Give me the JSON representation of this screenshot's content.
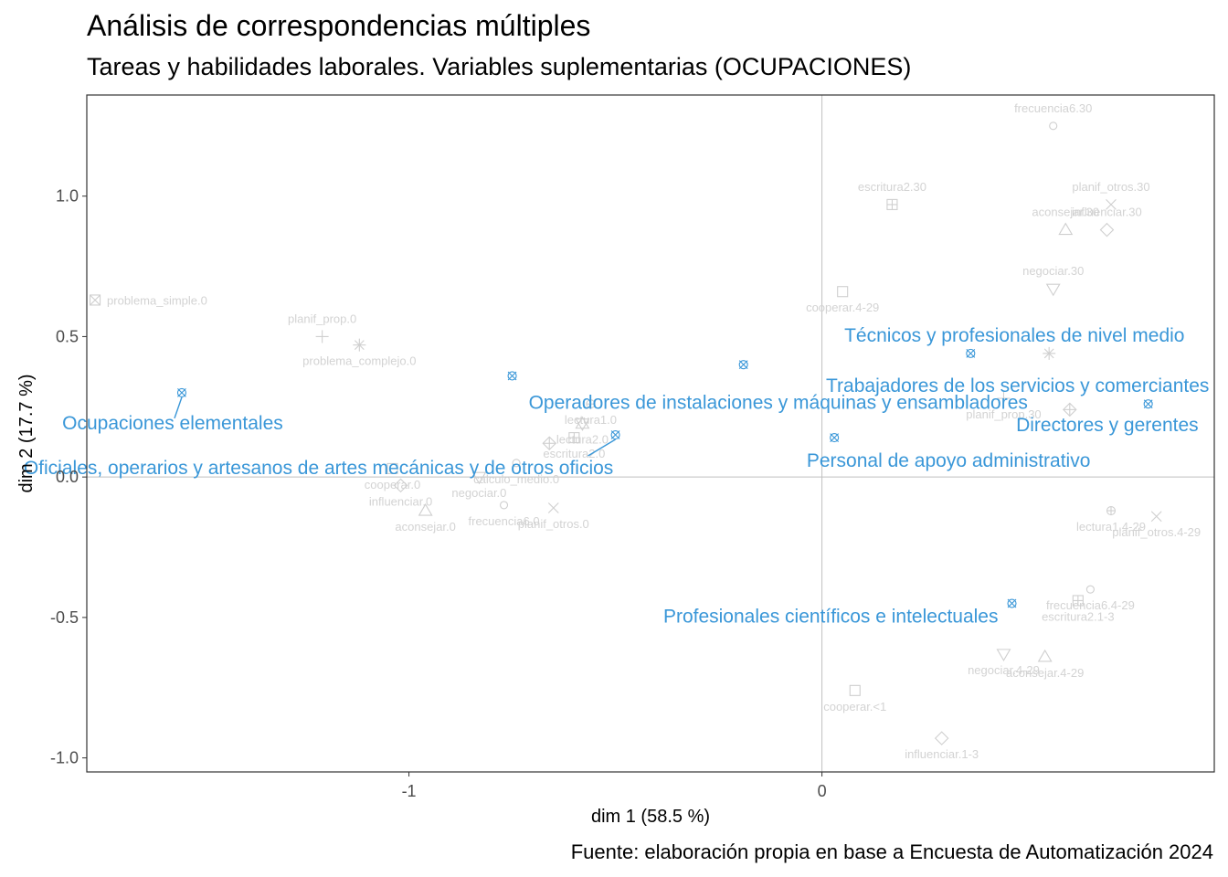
{
  "title": "Análisis de correspondencias múltiples",
  "subtitle": "Tareas y habilidades laborales. Variables suplementarias (OCUPACIONES)",
  "caption": "Fuente: elaboración propia en base a Encuesta de Automatización 2024",
  "colors": {
    "supplementary": "#3a97d8",
    "active": "#cfcfcf",
    "active_text": "#d3d3d3",
    "reference_line": "#bfbfbf"
  },
  "chart_data": {
    "type": "scatter",
    "xlabel": "dim 1 (58.5 %)",
    "ylabel": "dim 2 (17.7 %)",
    "xlim": [
      -1.78,
      0.95
    ],
    "ylim": [
      -1.05,
      1.36
    ],
    "x_ticks": [
      {
        "value": -1,
        "label": "-1"
      },
      {
        "value": 0,
        "label": "0"
      }
    ],
    "y_ticks": [
      {
        "value": 1.0,
        "label": "1.0"
      },
      {
        "value": 0.5,
        "label": "0.5"
      },
      {
        "value": 0.0,
        "label": "0.0"
      },
      {
        "value": -0.5,
        "label": "-0.5"
      },
      {
        "value": -1.0,
        "label": "-1.0"
      }
    ],
    "reference_lines": {
      "x": 0,
      "y": 0
    },
    "active_categories": [
      {
        "label": "problema_simple.0",
        "x": -1.76,
        "y": 0.63,
        "shape": "box-x"
      },
      {
        "label": "planif_prop.0",
        "x": -1.21,
        "y": 0.5,
        "shape": "plus"
      },
      {
        "label": "problema_complejo.0",
        "x": -1.12,
        "y": 0.47,
        "shape": "asterisk"
      },
      {
        "label": "lectura1.0",
        "x": -0.56,
        "y": 0.26,
        "shape": "circle-plus"
      },
      {
        "label": "lectura2.0",
        "x": -0.58,
        "y": 0.19,
        "shape": "hourglass"
      },
      {
        "label": "cooperar.0",
        "x": -1.04,
        "y": 0.03,
        "shape": "square"
      },
      {
        "label": "calculo_medio.0",
        "x": -0.74,
        "y": 0.05,
        "shape": "circle"
      },
      {
        "label": "escritura2.0",
        "x": -0.6,
        "y": 0.14,
        "shape": "square-plus"
      },
      {
        "label": "influenciar.0",
        "x": -1.02,
        "y": -0.03,
        "shape": "diamond"
      },
      {
        "label": "negociar.0",
        "x": -0.83,
        "y": 0.0,
        "shape": "triangle-down"
      },
      {
        "label": "frecuencia6.0",
        "x": -0.77,
        "y": -0.1,
        "shape": "circle"
      },
      {
        "label": "aconsejar.0",
        "x": -0.96,
        "y": -0.12,
        "shape": "triangle"
      },
      {
        "label": "planif_otros.0",
        "x": -0.65,
        "y": -0.11,
        "shape": "x"
      },
      {
        "label": "diamante-plus",
        "x": -0.66,
        "y": 0.12,
        "shape": "diamond-plus",
        "hide_label": true
      },
      {
        "label": "frecuencia6.30",
        "x": 0.56,
        "y": 1.25,
        "shape": "circle"
      },
      {
        "label": "escritura2.30",
        "x": 0.17,
        "y": 0.97,
        "shape": "square-plus"
      },
      {
        "label": "planif_otros.30",
        "x": 0.7,
        "y": 0.97,
        "shape": "x"
      },
      {
        "label": "aconsejar.30",
        "x": 0.59,
        "y": 0.88,
        "shape": "triangle"
      },
      {
        "label": "influenciar.30",
        "x": 0.69,
        "y": 0.88,
        "shape": "diamond"
      },
      {
        "label": "negociar.30",
        "x": 0.56,
        "y": 0.67,
        "shape": "triangle-down"
      },
      {
        "label": "cooperar.4-29",
        "x": 0.05,
        "y": 0.66,
        "shape": "square"
      },
      {
        "label": "planif_prop.30",
        "x": 0.44,
        "y": 0.28,
        "shape": "plus"
      },
      {
        "label": "lectura1.4-29",
        "x": 0.7,
        "y": -0.12,
        "shape": "circle-plus"
      },
      {
        "label": "planif_otros.4-29",
        "x": 0.81,
        "y": -0.14,
        "shape": "x"
      },
      {
        "label": "frecuencia6.4-29",
        "x": 0.65,
        "y": -0.4,
        "shape": "circle"
      },
      {
        "label": "escritura2.1-3",
        "x": 0.62,
        "y": -0.44,
        "shape": "square-plus"
      },
      {
        "label": "negociar.4-29",
        "x": 0.44,
        "y": -0.63,
        "shape": "triangle-down"
      },
      {
        "label": "aconsejar.4-29",
        "x": 0.54,
        "y": -0.64,
        "shape": "triangle"
      },
      {
        "label": "cooperar.<1",
        "x": 0.08,
        "y": -0.76,
        "shape": "square"
      },
      {
        "label": "influenciar.1-3",
        "x": 0.29,
        "y": -0.93,
        "shape": "diamond"
      },
      {
        "label": "asterisco-30",
        "x": 0.55,
        "y": 0.44,
        "shape": "asterisk",
        "hide_label": true
      },
      {
        "label": "diamante-plus-30",
        "x": 0.6,
        "y": 0.24,
        "shape": "diamond-plus",
        "hide_label": true
      }
    ],
    "supplementary_categories": [
      {
        "label": "Ocupaciones elementales",
        "x": -1.55,
        "y": 0.3
      },
      {
        "label": "Operadores de instalaciones y máquinas y ensambladores",
        "x": -0.75,
        "y": 0.36
      },
      {
        "label": "Oficiales, operarios y artesanos de artes mecánicas y de otros oficios",
        "x": -0.5,
        "y": 0.15
      },
      {
        "label": "Técnicos y profesionales de nivel medio",
        "x": 0.36,
        "y": 0.44
      },
      {
        "label": "Trabajadores de los servicios y comerciantes",
        "x": -0.19,
        "y": 0.4
      },
      {
        "label": "Directores y gerentes",
        "x": 0.79,
        "y": 0.26
      },
      {
        "label": "Personal de apoyo administrativo",
        "x": 0.03,
        "y": 0.14
      },
      {
        "label": "Profesionales científicos e intelectuales",
        "x": 0.46,
        "y": -0.45
      }
    ]
  }
}
